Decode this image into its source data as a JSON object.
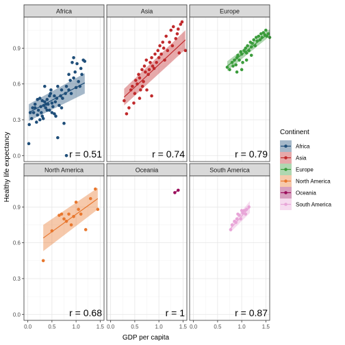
{
  "chart_data": {
    "type": "scatter",
    "xlabel": "GDP per capita",
    "ylabel": "Healthy life expectancy",
    "xlim": [
      -0.08,
      1.58
    ],
    "ylim": [
      -0.05,
      1.16
    ],
    "x_ticks": [
      0.0,
      0.5,
      1.0,
      1.5
    ],
    "x_tick_labels": [
      "0.0",
      "0.5",
      "1.0",
      "1.5"
    ],
    "y_ticks": [
      0.0,
      0.3,
      0.6,
      0.9
    ],
    "y_tick_labels": [
      "0.0",
      "0.3",
      "0.6",
      "0.9"
    ],
    "grid": true,
    "legend": {
      "title": "Continent",
      "position": "right",
      "entries": [
        "Africa",
        "Asia",
        "Europe",
        "North America",
        "Oceania",
        "South America"
      ]
    },
    "panels": [
      {
        "name": "Africa",
        "color": "#1f4e79",
        "r_label": "r = 0.51",
        "fit": {
          "x": [
            0.02,
            1.18
          ],
          "y": [
            0.36,
            0.61
          ]
        },
        "band": {
          "lower": [
            0.29,
            0.52
          ],
          "upper": [
            0.43,
            0.69
          ]
        },
        "points": [
          [
            0.02,
            0.1
          ],
          [
            0.03,
            0.26
          ],
          [
            0.05,
            0.36
          ],
          [
            0.08,
            0.31
          ],
          [
            0.1,
            0.4
          ],
          [
            0.12,
            0.36
          ],
          [
            0.15,
            0.4
          ],
          [
            0.18,
            0.28
          ],
          [
            0.2,
            0.34
          ],
          [
            0.22,
            0.38
          ],
          [
            0.25,
            0.48
          ],
          [
            0.27,
            0.41
          ],
          [
            0.28,
            0.36
          ],
          [
            0.3,
            0.33
          ],
          [
            0.32,
            0.31
          ],
          [
            0.33,
            0.42
          ],
          [
            0.35,
            0.45
          ],
          [
            0.37,
            0.4
          ],
          [
            0.38,
            0.43
          ],
          [
            0.4,
            0.38
          ],
          [
            0.4,
            0.47
          ],
          [
            0.42,
            0.43
          ],
          [
            0.45,
            0.5
          ],
          [
            0.47,
            0.52
          ],
          [
            0.48,
            0.55
          ],
          [
            0.5,
            0.36
          ],
          [
            0.52,
            0.41
          ],
          [
            0.55,
            0.35
          ],
          [
            0.57,
            0.45
          ],
          [
            0.58,
            0.33
          ],
          [
            0.6,
            0.48
          ],
          [
            0.62,
            0.58
          ],
          [
            0.65,
            0.42
          ],
          [
            0.68,
            0.5
          ],
          [
            0.7,
            0.55
          ],
          [
            0.72,
            0.48
          ],
          [
            0.75,
            0.27
          ],
          [
            0.78,
            0.52
          ],
          [
            0.8,
            0.58
          ],
          [
            0.85,
            0.68
          ],
          [
            0.88,
            0.63
          ],
          [
            0.9,
            0.52
          ],
          [
            0.92,
            0.78
          ],
          [
            0.95,
            0.65
          ],
          [
            0.98,
            0.7
          ],
          [
            1.0,
            0.57
          ],
          [
            1.02,
            0.77
          ],
          [
            1.05,
            0.62
          ],
          [
            1.08,
            0.58
          ],
          [
            1.1,
            0.73
          ],
          [
            1.12,
            0.68
          ],
          [
            1.15,
            0.8
          ],
          [
            0.15,
            0.43
          ],
          [
            0.25,
            0.3
          ],
          [
            0.45,
            0.38
          ],
          [
            0.55,
            0.5
          ],
          [
            0.35,
            0.58
          ],
          [
            0.62,
            0.15
          ],
          [
            0.8,
            0.0
          ],
          [
            0.95,
            0.82
          ],
          [
            0.3,
            0.46
          ],
          [
            0.5,
            0.44
          ],
          [
            0.7,
            0.4
          ],
          [
            0.2,
            0.47
          ],
          [
            0.85,
            0.55
          ],
          [
            1.18,
            0.79
          ]
        ]
      },
      {
        "name": "Asia",
        "color": "#c0292b",
        "r_label": "r = 0.74",
        "fit": {
          "x": [
            0.28,
            1.55
          ],
          "y": [
            0.49,
            0.97
          ]
        },
        "band": {
          "lower": [
            0.42,
            0.89
          ],
          "upper": [
            0.56,
            1.05
          ]
        },
        "points": [
          [
            0.28,
            0.46
          ],
          [
            0.33,
            0.35
          ],
          [
            0.38,
            0.4
          ],
          [
            0.42,
            0.55
          ],
          [
            0.45,
            0.58
          ],
          [
            0.5,
            0.52
          ],
          [
            0.52,
            0.63
          ],
          [
            0.55,
            0.6
          ],
          [
            0.58,
            0.68
          ],
          [
            0.6,
            0.65
          ],
          [
            0.62,
            0.55
          ],
          [
            0.65,
            0.72
          ],
          [
            0.66,
            0.58
          ],
          [
            0.68,
            0.62
          ],
          [
            0.7,
            0.75
          ],
          [
            0.72,
            0.7
          ],
          [
            0.74,
            0.8
          ],
          [
            0.75,
            0.55
          ],
          [
            0.78,
            0.68
          ],
          [
            0.8,
            0.72
          ],
          [
            0.82,
            0.78
          ],
          [
            0.85,
            0.82
          ],
          [
            0.87,
            0.75
          ],
          [
            0.9,
            0.73
          ],
          [
            0.92,
            0.85
          ],
          [
            0.95,
            0.78
          ],
          [
            0.98,
            0.88
          ],
          [
            1.0,
            0.82
          ],
          [
            1.02,
            0.92
          ],
          [
            1.05,
            0.85
          ],
          [
            1.08,
            0.95
          ],
          [
            1.1,
            0.9
          ],
          [
            1.12,
            0.8
          ],
          [
            1.15,
            1.0
          ],
          [
            1.18,
            0.88
          ],
          [
            1.22,
            0.95
          ],
          [
            1.25,
            1.05
          ],
          [
            1.28,
            0.92
          ],
          [
            1.3,
            1.08
          ],
          [
            1.35,
            0.98
          ],
          [
            1.38,
            1.02
          ],
          [
            1.4,
            1.06
          ],
          [
            1.42,
            0.86
          ],
          [
            1.45,
            1.1
          ],
          [
            1.48,
            1.12
          ],
          [
            1.55,
            0.88
          ],
          [
            0.48,
            0.44
          ],
          [
            0.6,
            0.48
          ],
          [
            0.85,
            0.5
          ]
        ]
      },
      {
        "name": "Europe",
        "color": "#3a9c3b",
        "r_label": "r = 0.79",
        "fit": {
          "x": [
            0.7,
            1.58
          ],
          "y": [
            0.75,
            1.03
          ]
        },
        "band": {
          "lower": [
            0.71,
            1.0
          ],
          "upper": [
            0.79,
            1.06
          ]
        },
        "points": [
          [
            0.7,
            0.74
          ],
          [
            0.75,
            0.72
          ],
          [
            0.8,
            0.78
          ],
          [
            0.82,
            0.75
          ],
          [
            0.85,
            0.8
          ],
          [
            0.88,
            0.76
          ],
          [
            0.9,
            0.82
          ],
          [
            0.92,
            0.84
          ],
          [
            0.95,
            0.8
          ],
          [
            0.98,
            0.87
          ],
          [
            1.0,
            0.85
          ],
          [
            1.02,
            0.78
          ],
          [
            1.05,
            0.88
          ],
          [
            1.08,
            0.9
          ],
          [
            1.1,
            0.86
          ],
          [
            1.12,
            0.92
          ],
          [
            1.15,
            0.88
          ],
          [
            1.18,
            0.95
          ],
          [
            1.2,
            0.91
          ],
          [
            1.22,
            0.94
          ],
          [
            1.25,
            0.97
          ],
          [
            1.28,
            0.92
          ],
          [
            1.3,
            0.99
          ],
          [
            1.32,
            0.96
          ],
          [
            1.35,
            1.0
          ],
          [
            1.38,
            0.97
          ],
          [
            1.4,
            1.02
          ],
          [
            1.42,
            0.99
          ],
          [
            1.45,
            1.03
          ],
          [
            1.48,
            1.01
          ],
          [
            1.5,
            1.05
          ],
          [
            1.52,
            1.0
          ],
          [
            1.55,
            1.02
          ],
          [
            1.58,
            0.99
          ],
          [
            1.0,
            0.72
          ],
          [
            1.1,
            0.8
          ],
          [
            0.9,
            0.7
          ],
          [
            1.2,
            0.84
          ]
        ]
      },
      {
        "name": "North America",
        "color": "#e8772e",
        "r_label": "r = 0.68",
        "fit": {
          "x": [
            0.32,
            1.45
          ],
          "y": [
            0.64,
            0.97
          ]
        },
        "band": {
          "lower": [
            0.53,
            0.88
          ],
          "upper": [
            0.75,
            1.06
          ]
        },
        "points": [
          [
            0.32,
            0.45
          ],
          [
            0.5,
            0.7
          ],
          [
            0.65,
            0.83
          ],
          [
            0.7,
            0.84
          ],
          [
            0.75,
            0.8
          ],
          [
            0.8,
            0.78
          ],
          [
            0.85,
            0.84
          ],
          [
            0.9,
            0.75
          ],
          [
            0.95,
            0.82
          ],
          [
            1.0,
            0.94
          ],
          [
            1.05,
            0.88
          ],
          [
            1.1,
            0.84
          ],
          [
            1.2,
            0.71
          ],
          [
            1.3,
            0.97
          ],
          [
            1.4,
            1.05
          ],
          [
            1.45,
            0.88
          ]
        ]
      },
      {
        "name": "Oceania",
        "color": "#9b0e5c",
        "r_label": "r = 1",
        "fit": {
          "x": [
            1.33,
            1.4
          ],
          "y": [
            1.02,
            1.04
          ]
        },
        "band": null,
        "points": [
          [
            1.33,
            1.02
          ],
          [
            1.4,
            1.04
          ]
        ]
      },
      {
        "name": "South America",
        "color": "#e8a5d8",
        "r_label": "r = 0.87",
        "fit": {
          "x": [
            0.77,
            1.17
          ],
          "y": [
            0.72,
            0.9
          ]
        },
        "band": {
          "lower": [
            0.69,
            0.85
          ],
          "upper": [
            0.75,
            0.95
          ]
        },
        "points": [
          [
            0.77,
            0.71
          ],
          [
            0.8,
            0.75
          ],
          [
            0.85,
            0.78
          ],
          [
            0.9,
            0.8
          ],
          [
            0.92,
            0.84
          ],
          [
            0.95,
            0.83
          ],
          [
            0.98,
            0.8
          ],
          [
            1.0,
            0.87
          ],
          [
            1.05,
            0.87
          ],
          [
            1.08,
            0.84
          ],
          [
            1.1,
            0.88
          ],
          [
            1.15,
            0.9
          ],
          [
            0.88,
            0.77
          ],
          [
            1.02,
            0.85
          ]
        ]
      }
    ]
  }
}
